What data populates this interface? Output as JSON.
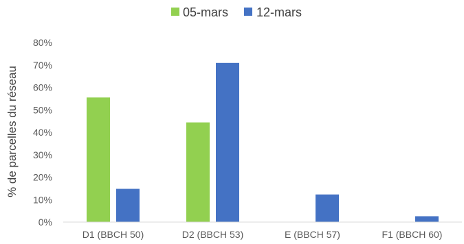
{
  "chart_data": {
    "type": "bar",
    "title": "",
    "xlabel": "",
    "ylabel": "% de parcelles du réseau",
    "categories": [
      "D1 (BBCH 50)",
      "D2 (BBCH 53)",
      "E (BBCH 57)",
      "F1 (BBCH 60)"
    ],
    "series": [
      {
        "name": "05-mars",
        "color": "#92d050",
        "values": [
          55.5,
          44.4,
          0,
          0
        ]
      },
      {
        "name": "12-mars",
        "color": "#4472c4",
        "values": [
          14.8,
          70.9,
          12.3,
          2.6
        ]
      }
    ],
    "ylim": [
      0,
      80
    ],
    "yticks": [
      0,
      10,
      20,
      30,
      40,
      50,
      60,
      70,
      80
    ],
    "ytick_labels": [
      "0%",
      "10%",
      "20%",
      "30%",
      "40%",
      "50%",
      "60%",
      "70%",
      "80%"
    ],
    "legend_position": "top-center",
    "grid": false
  }
}
